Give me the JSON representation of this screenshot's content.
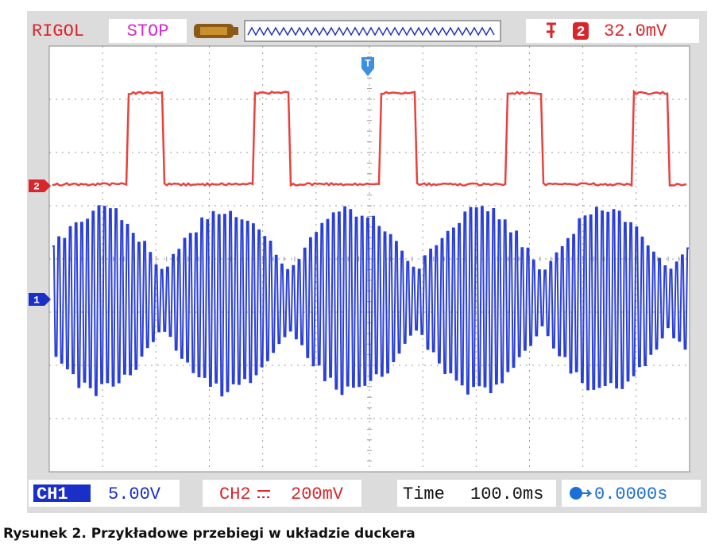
{
  "header": {
    "brand": "RIGOL",
    "status": "STOP",
    "trigger_source": "2",
    "trigger_level": "32.0mV"
  },
  "markers": {
    "trigger": "T",
    "ch2": "2",
    "ch1": "1"
  },
  "footer": {
    "ch1_label": "CH1",
    "ch1_scale": "5.00V",
    "ch2_label": "CH2",
    "ch2_scale": "200mV",
    "time_label": "Time",
    "time_scale": "100.0ms",
    "offset": "0.0000s"
  },
  "caption": "Rysunek 2. Przykładowe przebiegi w układzie duckera"
}
